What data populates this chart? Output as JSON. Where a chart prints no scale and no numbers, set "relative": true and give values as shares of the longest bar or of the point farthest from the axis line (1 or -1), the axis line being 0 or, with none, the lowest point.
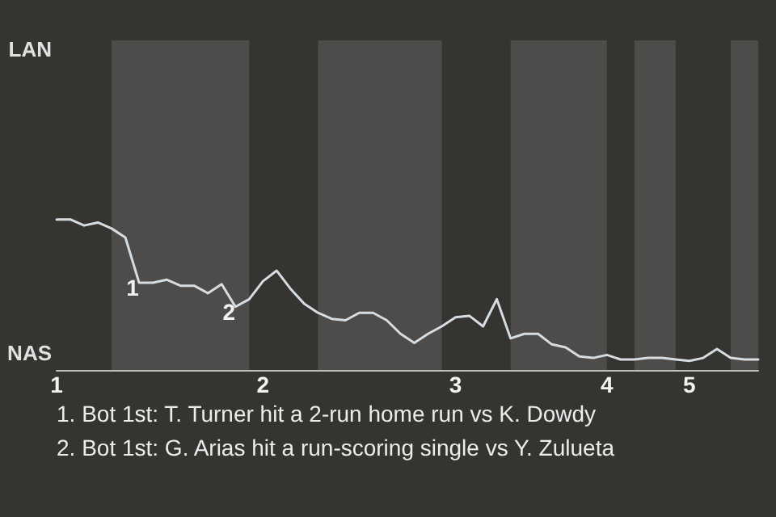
{
  "chart_data": {
    "type": "line",
    "categories": [
      "1",
      null,
      null,
      null,
      null,
      null,
      null,
      null,
      null,
      null,
      null,
      null,
      null,
      null,
      null,
      "2",
      null,
      null,
      null,
      null,
      null,
      null,
      null,
      null,
      null,
      null,
      null,
      null,
      null,
      "3",
      null,
      null,
      null,
      null,
      null,
      null,
      null,
      null,
      null,
      null,
      "4",
      null,
      null,
      null,
      null,
      null,
      "5",
      null,
      null,
      null,
      null,
      null
    ],
    "series": [
      {
        "color": "#d5dde3",
        "values": [
          1,
          1,
          0.96,
          0.98,
          0.94,
          0.88,
          0.58,
          0.58,
          0.6,
          0.56,
          0.56,
          0.51,
          0.57,
          0.42,
          0.47,
          0.59,
          0.66,
          0.54,
          0.44,
          0.38,
          0.34,
          0.33,
          0.38,
          0.38,
          0.33,
          0.24,
          0.18,
          0.24,
          0.29,
          0.35,
          0.36,
          0.29,
          0.47,
          0.21,
          0.24,
          0.24,
          0.17,
          0.15,
          0.09,
          0.08,
          0.1,
          0.07,
          0.07,
          0.08,
          0.08,
          0.07,
          0.06,
          0.08,
          0.14,
          0.08,
          0.07,
          0.07
        ]
      }
    ],
    "relative": true,
    "annotations": [
      {
        "text": "LAN"
      },
      {
        "text": "NAS"
      },
      {
        "text": "1",
        "y": 0.58
      },
      {
        "text": "2",
        "y": 0.42
      },
      "1. Bot 1st: T. Turner hit a 2-run home run vs K. Dowdy",
      "2. Bot 1st: G. Arias hit a run-scoring single vs Y. Zulueta"
    ],
    "marker": "none"
  }
}
